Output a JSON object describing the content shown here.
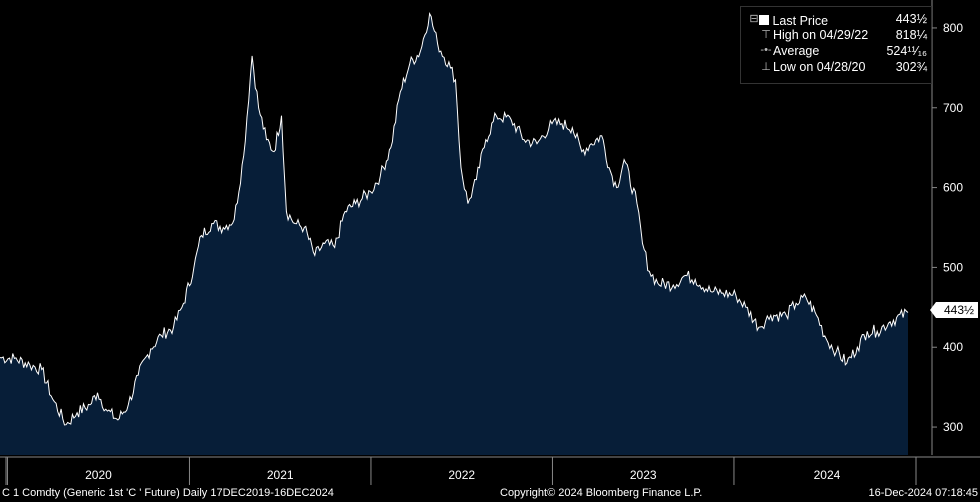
{
  "chart_data": {
    "type": "area",
    "x_labels": [
      "2020",
      "2021",
      "2022",
      "2023",
      "2024"
    ],
    "y_ticks": [
      300,
      400,
      500,
      600,
      700,
      800
    ],
    "ylim": [
      265,
      835
    ],
    "x_range": [
      "2019-12-17",
      "2024-12-16"
    ],
    "series": [
      {
        "points": [
          [
            "2019-12-17",
            387
          ],
          [
            "2020-01-15",
            386
          ],
          [
            "2020-02-15",
            378
          ],
          [
            "2020-03-10",
            372
          ],
          [
            "2020-04-01",
            335
          ],
          [
            "2020-04-28",
            303
          ],
          [
            "2020-05-20",
            318
          ],
          [
            "2020-06-15",
            328
          ],
          [
            "2020-06-30",
            343
          ],
          [
            "2020-07-20",
            320
          ],
          [
            "2020-08-10",
            309
          ],
          [
            "2020-08-31",
            328
          ],
          [
            "2020-09-20",
            365
          ],
          [
            "2020-10-15",
            398
          ],
          [
            "2020-11-05",
            415
          ],
          [
            "2020-11-30",
            425
          ],
          [
            "2020-12-20",
            455
          ],
          [
            "2021-01-10",
            500
          ],
          [
            "2021-01-25",
            540
          ],
          [
            "2021-02-15",
            555
          ],
          [
            "2021-03-10",
            550
          ],
          [
            "2021-04-01",
            560
          ],
          [
            "2021-04-20",
            640
          ],
          [
            "2021-05-07",
            765
          ],
          [
            "2021-05-20",
            700
          ],
          [
            "2021-06-05",
            660
          ],
          [
            "2021-06-20",
            645
          ],
          [
            "2021-07-05",
            690
          ],
          [
            "2021-07-15",
            570
          ],
          [
            "2021-08-01",
            555
          ],
          [
            "2021-08-20",
            550
          ],
          [
            "2021-09-10",
            515
          ],
          [
            "2021-09-30",
            530
          ],
          [
            "2021-10-20",
            525
          ],
          [
            "2021-11-10",
            570
          ],
          [
            "2021-12-01",
            580
          ],
          [
            "2021-12-31",
            595
          ],
          [
            "2022-01-20",
            615
          ],
          [
            "2022-02-10",
            650
          ],
          [
            "2022-03-01",
            720
          ],
          [
            "2022-03-20",
            755
          ],
          [
            "2022-04-10",
            770
          ],
          [
            "2022-04-29",
            818
          ],
          [
            "2022-05-15",
            780
          ],
          [
            "2022-06-10",
            750
          ],
          [
            "2022-06-20",
            735
          ],
          [
            "2022-07-01",
            625
          ],
          [
            "2022-07-15",
            580
          ],
          [
            "2022-08-01",
            610
          ],
          [
            "2022-08-20",
            660
          ],
          [
            "2022-09-10",
            690
          ],
          [
            "2022-10-10",
            685
          ],
          [
            "2022-11-05",
            660
          ],
          [
            "2022-12-01",
            655
          ],
          [
            "2022-12-31",
            680
          ],
          [
            "2023-01-20",
            680
          ],
          [
            "2023-02-10",
            675
          ],
          [
            "2023-03-01",
            645
          ],
          [
            "2023-03-20",
            655
          ],
          [
            "2023-04-10",
            665
          ],
          [
            "2023-04-25",
            625
          ],
          [
            "2023-05-10",
            600
          ],
          [
            "2023-05-25",
            635
          ],
          [
            "2023-06-20",
            580
          ],
          [
            "2023-07-01",
            530
          ],
          [
            "2023-07-15",
            495
          ],
          [
            "2023-08-01",
            480
          ],
          [
            "2023-09-01",
            478
          ],
          [
            "2023-09-25",
            490
          ],
          [
            "2023-10-15",
            485
          ],
          [
            "2023-11-15",
            470
          ],
          [
            "2023-12-10",
            468
          ],
          [
            "2024-01-05",
            465
          ],
          [
            "2024-01-25",
            450
          ],
          [
            "2024-02-20",
            425
          ],
          [
            "2024-03-15",
            440
          ],
          [
            "2024-04-15",
            440
          ],
          [
            "2024-05-05",
            455
          ],
          [
            "2024-05-25",
            462
          ],
          [
            "2024-06-15",
            440
          ],
          [
            "2024-07-05",
            410
          ],
          [
            "2024-07-25",
            395
          ],
          [
            "2024-08-15",
            380
          ],
          [
            "2024-09-05",
            400
          ],
          [
            "2024-09-25",
            420
          ],
          [
            "2024-10-15",
            420
          ],
          [
            "2024-11-10",
            432
          ],
          [
            "2024-12-16",
            443.5
          ]
        ]
      }
    ]
  },
  "legend": [
    {
      "label": "Last Price",
      "value": "443½"
    },
    {
      "label": "High on 04/29/22",
      "value": "818¼"
    },
    {
      "label": "Average",
      "value": "524¹¹⁄₁₆"
    },
    {
      "label": "Low on 04/28/20",
      "value": "302¾"
    }
  ],
  "last_price_tag": "443½",
  "footer": {
    "security": "C 1 Comdty (Generic 1st 'C ' Future)  Daily 17DEC2019-16DEC2024",
    "copyright": "Copyright© 2024 Bloomberg Finance L.P.",
    "timestamp": "16-Dec-2024 07:18:45"
  },
  "colors": {
    "fill": "#071e38",
    "line": "#ffffff",
    "background": "#000000",
    "axis": "#888888"
  }
}
